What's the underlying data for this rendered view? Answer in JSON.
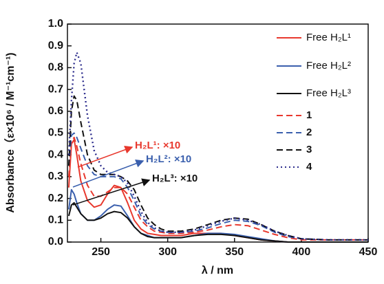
{
  "chart_data": {
    "type": "line",
    "xlabel": "λ / nm",
    "ylabel": "Absorbance（ε×10⁶ / M⁻¹cm⁻¹)",
    "xlim": [
      225,
      450
    ],
    "xticks": [
      250,
      300,
      350,
      400,
      450
    ],
    "ylim": [
      0,
      1
    ],
    "yticks": [
      {
        "value": 0,
        "label": "0.0"
      },
      0.1,
      0.2,
      0.3,
      0.4,
      0.5,
      0.6,
      0.7,
      0.8,
      0.9,
      {
        "value": 1,
        "label": "1.0"
      }
    ],
    "legend": "upper right",
    "x": [
      226,
      228,
      230,
      232,
      235,
      240,
      245,
      250,
      255,
      260,
      265,
      270,
      275,
      280,
      285,
      290,
      295,
      300,
      310,
      320,
      330,
      340,
      350,
      360,
      370,
      380,
      390,
      400,
      420,
      450
    ],
    "series": [
      {
        "name": "Free H₂L¹",
        "color": "#e8382d",
        "style": "solid",
        "values": [
          0.25,
          0.45,
          0.47,
          0.4,
          0.28,
          0.19,
          0.16,
          0.17,
          0.22,
          0.26,
          0.25,
          0.18,
          0.1,
          0.06,
          0.04,
          0.035,
          0.03,
          0.03,
          0.03,
          0.04,
          0.04,
          0.04,
          0.03,
          0.02,
          0.01,
          0.005,
          0,
          0,
          0,
          0
        ]
      },
      {
        "name": "Free H₂L²",
        "color": "#3a5fad",
        "style": "solid",
        "values": [
          0.15,
          0.24,
          0.22,
          0.18,
          0.13,
          0.1,
          0.1,
          0.12,
          0.15,
          0.17,
          0.165,
          0.12,
          0.07,
          0.04,
          0.03,
          0.02,
          0.02,
          0.02,
          0.02,
          0.03,
          0.04,
          0.04,
          0.035,
          0.025,
          0.015,
          0.005,
          0,
          0,
          0,
          0
        ]
      },
      {
        "name": "Free H₂L³",
        "color": "#111111",
        "style": "solid",
        "values": [
          0.12,
          0.17,
          0.18,
          0.16,
          0.13,
          0.1,
          0.1,
          0.11,
          0.13,
          0.14,
          0.135,
          0.11,
          0.07,
          0.04,
          0.025,
          0.02,
          0.02,
          0.02,
          0.02,
          0.03,
          0.035,
          0.035,
          0.03,
          0.02,
          0.01,
          0.005,
          0,
          0,
          0,
          0
        ]
      },
      {
        "name": "1",
        "color": "#e8382d",
        "style": "dash",
        "values": [
          0.3,
          0.46,
          0.48,
          0.44,
          0.36,
          0.26,
          0.21,
          0.21,
          0.23,
          0.25,
          0.25,
          0.22,
          0.16,
          0.1,
          0.07,
          0.05,
          0.045,
          0.04,
          0.04,
          0.045,
          0.055,
          0.07,
          0.08,
          0.075,
          0.055,
          0.035,
          0.02,
          0.01,
          0.01,
          0.01
        ]
      },
      {
        "name": "2",
        "color": "#3a5fad",
        "style": "dash",
        "values": [
          0.35,
          0.49,
          0.5,
          0.48,
          0.43,
          0.35,
          0.31,
          0.3,
          0.3,
          0.3,
          0.29,
          0.25,
          0.19,
          0.12,
          0.08,
          0.06,
          0.05,
          0.045,
          0.045,
          0.05,
          0.065,
          0.085,
          0.1,
          0.095,
          0.075,
          0.045,
          0.025,
          0.015,
          0.01,
          0.01
        ]
      },
      {
        "name": "3",
        "color": "#111111",
        "style": "dash",
        "values": [
          0.35,
          0.6,
          0.67,
          0.65,
          0.55,
          0.4,
          0.33,
          0.31,
          0.31,
          0.31,
          0.3,
          0.28,
          0.24,
          0.17,
          0.11,
          0.08,
          0.06,
          0.05,
          0.05,
          0.06,
          0.08,
          0.1,
          0.11,
          0.105,
          0.08,
          0.05,
          0.03,
          0.015,
          0.01,
          0.01
        ]
      },
      {
        "name": "4",
        "color": "#2b2b8c",
        "style": "dot",
        "values": [
          0.4,
          0.65,
          0.82,
          0.87,
          0.82,
          0.58,
          0.42,
          0.35,
          0.32,
          0.31,
          0.3,
          0.27,
          0.21,
          0.14,
          0.09,
          0.065,
          0.05,
          0.045,
          0.045,
          0.055,
          0.075,
          0.095,
          0.11,
          0.1,
          0.08,
          0.05,
          0.03,
          0.015,
          0.01,
          0.01
        ]
      }
    ],
    "annotations": [
      {
        "text": "H₂L¹: ×10",
        "color": "#e8382d"
      },
      {
        "text": "H₂L²: ×10",
        "color": "#3a5fad"
      },
      {
        "text": "H₂L³: ×10",
        "color": "#111111"
      }
    ]
  }
}
